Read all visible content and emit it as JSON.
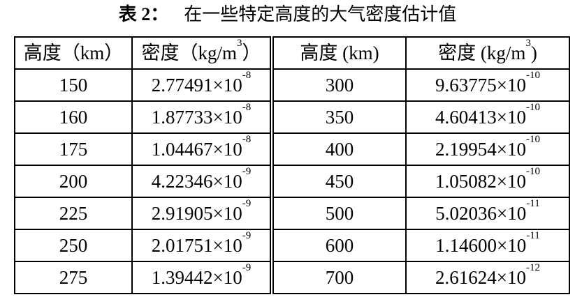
{
  "title": {
    "label": "表 2：",
    "text": "在一些特定高度的大气密度估计值"
  },
  "headers": [
    "高度（km）",
    "密度（kg/m",
    "3",
    "）"
  ],
  "header_altitude": "高度 (km)",
  "header_density": "密度 (kg/m",
  "header_density_exp": "3",
  "header_close": ")",
  "times": "×10",
  "rows": [
    {
      "h1": "150",
      "m1": "2.77491",
      "e1": "-8",
      "h2": "300",
      "m2": "9.63775",
      "e2": "-10"
    },
    {
      "h1": "160",
      "m1": "1.87733",
      "e1": "-8",
      "h2": "350",
      "m2": "4.60413",
      "e2": "-10"
    },
    {
      "h1": "175",
      "m1": "1.04467",
      "e1": "-8",
      "h2": "400",
      "m2": "2.19954",
      "e2": "-10"
    },
    {
      "h1": "200",
      "m1": "4.22346",
      "e1": "-9",
      "h2": "450",
      "m2": "1.05082",
      "e2": "-10"
    },
    {
      "h1": "225",
      "m1": "2.91905",
      "e1": "-9",
      "h2": "500",
      "m2": "5.02036",
      "e2": "-11"
    },
    {
      "h1": "250",
      "m1": "2.01751",
      "e1": "-9",
      "h2": "600",
      "m2": "1.14600",
      "e2": "-11"
    },
    {
      "h1": "275",
      "m1": "1.39442",
      "e1": "-9",
      "h2": "700",
      "m2": "2.61624",
      "e2": "-12"
    }
  ]
}
